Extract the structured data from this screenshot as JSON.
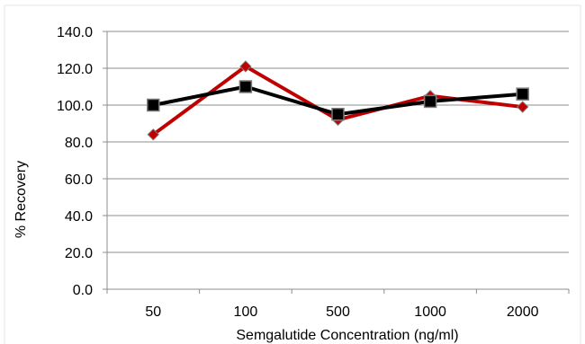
{
  "chart_data": {
    "type": "line",
    "title": "",
    "xlabel": "Semgalutide Concentration (ng/ml)",
    "ylabel": "% Recovery",
    "categories": [
      "50",
      "100",
      "500",
      "1000",
      "2000"
    ],
    "ylim": [
      0,
      140
    ],
    "yticks": [
      "0.0",
      "20.0",
      "40.0",
      "60.0",
      "80.0",
      "100.0",
      "120.0",
      "140.0"
    ],
    "grid": true,
    "legend": "none",
    "series": [
      {
        "marker": "diamond",
        "color": "#c00000",
        "values": [
          84,
          121,
          92,
          105,
          99
        ]
      },
      {
        "marker": "square",
        "color": "#000000",
        "values": [
          100,
          110,
          95,
          102,
          106
        ]
      }
    ]
  }
}
